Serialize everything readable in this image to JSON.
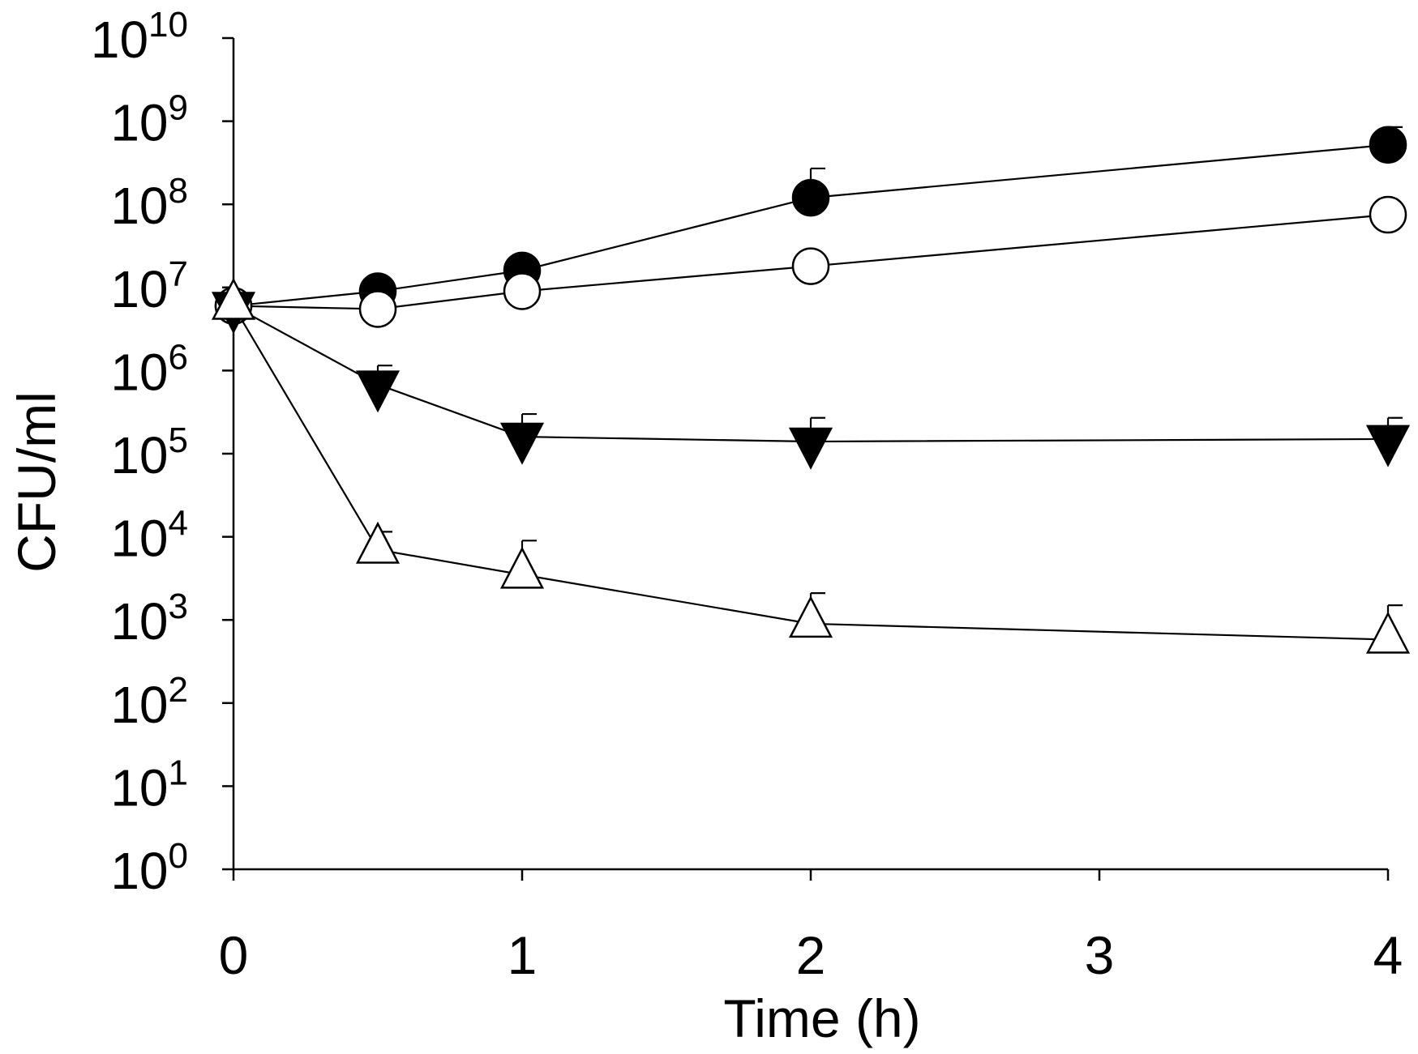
{
  "chart_data": {
    "type": "line",
    "title": "",
    "xlabel": "Time (h)",
    "ylabel": "CFU/ml",
    "yscale": "log10",
    "xlim": [
      0,
      4
    ],
    "ylim_exponent": [
      0,
      10
    ],
    "x_ticks": [
      {
        "value": 0,
        "label": "0"
      },
      {
        "value": 1,
        "label": "1"
      },
      {
        "value": 2,
        "label": "2"
      },
      {
        "value": 3,
        "label": "3"
      },
      {
        "value": 4,
        "label": "4"
      }
    ],
    "y_ticks": [
      {
        "exp": 0,
        "base": "10",
        "sup": "0"
      },
      {
        "exp": 1,
        "base": "10",
        "sup": "1"
      },
      {
        "exp": 2,
        "base": "10",
        "sup": "2"
      },
      {
        "exp": 3,
        "base": "10",
        "sup": "3"
      },
      {
        "exp": 4,
        "base": "10",
        "sup": "4"
      },
      {
        "exp": 5,
        "base": "10",
        "sup": "5"
      },
      {
        "exp": 6,
        "base": "10",
        "sup": "6"
      },
      {
        "exp": 7,
        "base": "10",
        "sup": "7"
      },
      {
        "exp": 8,
        "base": "10",
        "sup": "8"
      },
      {
        "exp": 9,
        "base": "10",
        "sup": "9"
      },
      {
        "exp": 10,
        "base": "10",
        "sup": "10"
      }
    ],
    "x": [
      0,
      0.5,
      1,
      2,
      4
    ],
    "series": [
      {
        "name": "filled circle",
        "marker": "circle",
        "fill": "#000000",
        "values": [
          6000000.0,
          9000000.0,
          16000000.0,
          120000000.0,
          520000000.0
        ],
        "error_upper": [
          null,
          null,
          null,
          270000000.0,
          850000000.0
        ]
      },
      {
        "name": "open circle",
        "marker": "circle",
        "fill": "#ffffff",
        "values": [
          6000000.0,
          5500000.0,
          9000000.0,
          18000000.0,
          75000000.0
        ],
        "error_upper": [
          null,
          null,
          null,
          null,
          null
        ]
      },
      {
        "name": "filled triangle down",
        "marker": "triangle-down",
        "fill": "#000000",
        "values": [
          6000000.0,
          680000.0,
          160000.0,
          140000.0,
          150000.0
        ],
        "error_upper": [
          null,
          1150000.0,
          300000.0,
          270000.0,
          270000.0
        ]
      },
      {
        "name": "open triangle up",
        "marker": "triangle-up",
        "fill": "#ffffff",
        "values": [
          6000000.0,
          7000.0,
          3500.0,
          900.0,
          580.0
        ],
        "error_upper": [
          null,
          11500.0,
          9000.0,
          2100.0,
          1500.0
        ]
      }
    ]
  }
}
